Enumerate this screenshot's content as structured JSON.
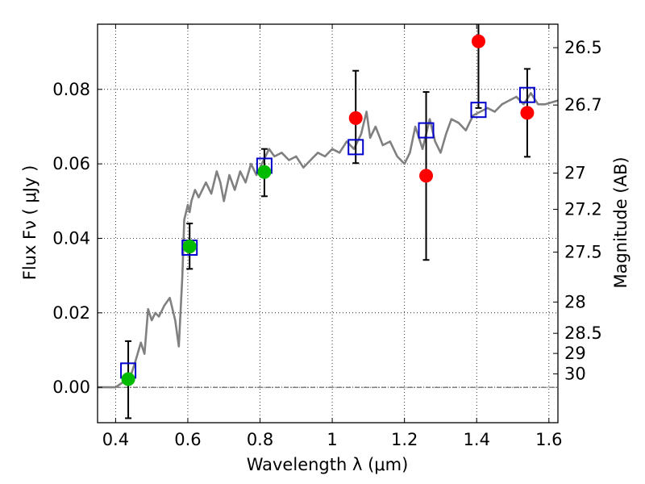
{
  "chart_data": {
    "type": "scatter",
    "xlabel": "Wavelength  λ (μm)",
    "ylabel": "Flux  Fν  ( μJy )",
    "y2label": "Magnitude (AB)",
    "xlim": [
      0.35,
      1.625
    ],
    "ylim": [
      -0.0095,
      0.0975
    ],
    "x_ticks": [
      0.4,
      0.6,
      0.8,
      1.0,
      1.2,
      1.4,
      1.6
    ],
    "x_tick_labels": [
      "0.4",
      "0.6",
      "0.8",
      "1",
      "1.2",
      "1.4",
      "1.6"
    ],
    "y_ticks": [
      0.0,
      0.02,
      0.04,
      0.06,
      0.08
    ],
    "y_tick_labels": [
      "0.00",
      "0.02",
      "0.04",
      "0.06",
      "0.08"
    ],
    "mag_ticks": [
      {
        "label": "26.5",
        "flux": 0.0912
      },
      {
        "label": "26.7",
        "flux": 0.0758
      },
      {
        "label": "27",
        "flux": 0.0575
      },
      {
        "label": "27.2",
        "flux": 0.0478
      },
      {
        "label": "27.5",
        "flux": 0.0363
      },
      {
        "label": "28",
        "flux": 0.0229
      },
      {
        "label": "28.5",
        "flux": 0.0145
      },
      {
        "label": "29",
        "flux": 0.0091
      },
      {
        "label": "30",
        "flux": 0.0036
      }
    ],
    "sed_model": {
      "name": "model spectrum",
      "color": "#808080",
      "x": [
        0.35,
        0.4,
        0.415,
        0.43,
        0.445,
        0.455,
        0.47,
        0.48,
        0.49,
        0.5,
        0.51,
        0.52,
        0.535,
        0.55,
        0.565,
        0.575,
        0.585,
        0.59,
        0.6,
        0.605,
        0.61,
        0.62,
        0.63,
        0.64,
        0.65,
        0.665,
        0.68,
        0.69,
        0.7,
        0.715,
        0.73,
        0.745,
        0.76,
        0.775,
        0.79,
        0.81,
        0.825,
        0.84,
        0.86,
        0.88,
        0.9,
        0.92,
        0.94,
        0.96,
        0.98,
        1.0,
        1.02,
        1.04,
        1.06,
        1.08,
        1.095,
        1.105,
        1.12,
        1.14,
        1.16,
        1.18,
        1.2,
        1.215,
        1.23,
        1.25,
        1.27,
        1.285,
        1.3,
        1.315,
        1.33,
        1.35,
        1.37,
        1.39,
        1.41,
        1.43,
        1.45,
        1.47,
        1.49,
        1.51,
        1.53,
        1.55,
        1.57,
        1.59,
        1.625
      ],
      "y": [
        0.0,
        0.0,
        0.001,
        0.002,
        0.004,
        0.007,
        0.012,
        0.009,
        0.021,
        0.018,
        0.02,
        0.019,
        0.022,
        0.024,
        0.018,
        0.011,
        0.03,
        0.045,
        0.049,
        0.047,
        0.05,
        0.053,
        0.051,
        0.053,
        0.055,
        0.052,
        0.058,
        0.055,
        0.05,
        0.057,
        0.053,
        0.058,
        0.055,
        0.06,
        0.057,
        0.061,
        0.064,
        0.062,
        0.063,
        0.061,
        0.062,
        0.059,
        0.061,
        0.063,
        0.062,
        0.064,
        0.063,
        0.066,
        0.064,
        0.068,
        0.074,
        0.067,
        0.07,
        0.065,
        0.066,
        0.062,
        0.06,
        0.063,
        0.07,
        0.064,
        0.072,
        0.066,
        0.063,
        0.068,
        0.072,
        0.071,
        0.069,
        0.073,
        0.074,
        0.075,
        0.074,
        0.076,
        0.077,
        0.078,
        0.076,
        0.079,
        0.076,
        0.076,
        0.077
      ]
    },
    "model_flux": {
      "name": "model synthetic photometry",
      "marker": "open-square",
      "color": "#0000cc",
      "points": [
        {
          "x": 0.435,
          "y": 0.0045
        },
        {
          "x": 0.605,
          "y": 0.0375
        },
        {
          "x": 0.812,
          "y": 0.0595
        },
        {
          "x": 1.065,
          "y": 0.0645
        },
        {
          "x": 1.26,
          "y": 0.069
        },
        {
          "x": 1.405,
          "y": 0.0745
        },
        {
          "x": 1.54,
          "y": 0.0785
        }
      ]
    },
    "observed": [
      {
        "x": 0.435,
        "y": 0.0022,
        "err_lo": 0.0105,
        "err_hi": 0.0102,
        "color": "#00bb00"
      },
      {
        "x": 0.605,
        "y": 0.0378,
        "err_lo": 0.006,
        "err_hi": 0.0062,
        "color": "#00bb00"
      },
      {
        "x": 0.812,
        "y": 0.0578,
        "err_lo": 0.0065,
        "err_hi": 0.0062,
        "color": "#00bb00"
      },
      {
        "x": 1.065,
        "y": 0.0723,
        "err_lo": 0.0121,
        "err_hi": 0.0127,
        "color": "#ff0000"
      },
      {
        "x": 1.26,
        "y": 0.0568,
        "err_lo": 0.0226,
        "err_hi": 0.0225,
        "color": "#ff0000"
      },
      {
        "x": 1.405,
        "y": 0.0929,
        "err_lo": 0.0179,
        "err_hi": 0.006,
        "color": "#ff0000"
      },
      {
        "x": 1.54,
        "y": 0.0737,
        "err_lo": 0.0118,
        "err_hi": 0.0118,
        "color": "#ff0000"
      }
    ]
  }
}
